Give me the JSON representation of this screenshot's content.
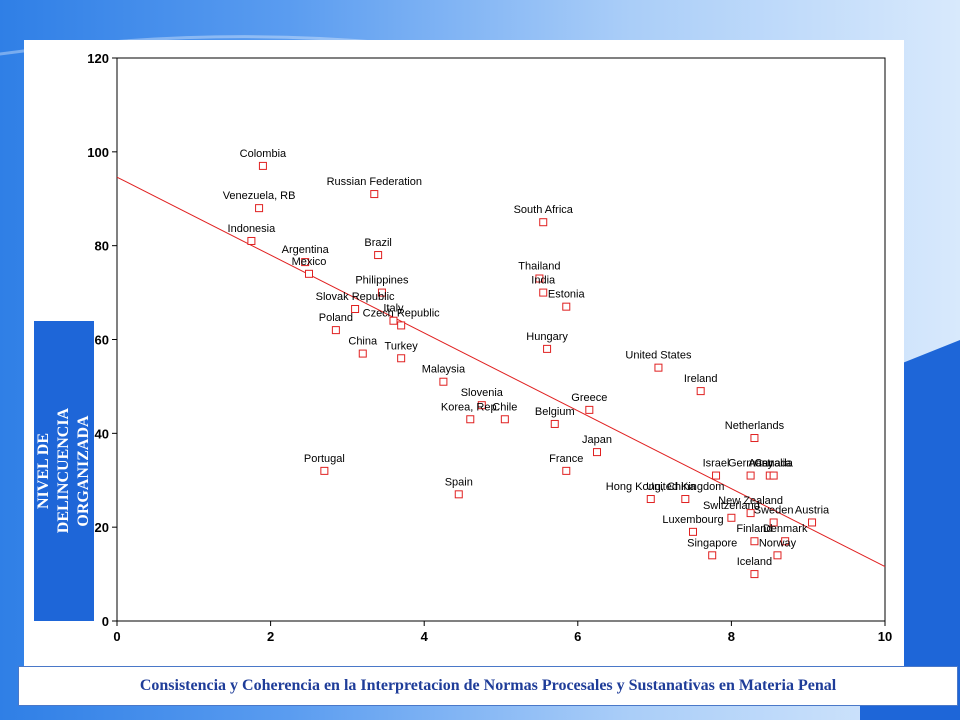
{
  "footer": {
    "text": "Consistencia y Coherencia en la Interpretacion de Normas Procesales y Sustanativas en Materia Penal"
  },
  "colors": {
    "marker": "#e02020",
    "fit_line": "#e02020",
    "label_box": "#1e66d8"
  },
  "chart_data": {
    "type": "scatter",
    "title": "",
    "xlabel": "",
    "ylabel": "NIVEL DE DELINCUENCIA ORGANIZADA",
    "xlim": [
      0,
      10
    ],
    "ylim": [
      0,
      120
    ],
    "x_ticks": [
      0,
      2,
      4,
      6,
      8,
      10
    ],
    "y_ticks": [
      0,
      20,
      40,
      60,
      80,
      100,
      120
    ],
    "y_tick_labels": [
      "0",
      "20",
      "40",
      "60",
      "80",
      "100",
      "120"
    ],
    "grid": false,
    "legend": "none",
    "marker": "hollow-square",
    "fit_line": {
      "x": [
        0,
        10
      ],
      "y": [
        94.6,
        11.6
      ]
    },
    "points": [
      {
        "label": "Colombia",
        "x": 1.9,
        "y": 97
      },
      {
        "label": "Russian Federation",
        "x": 3.35,
        "y": 91
      },
      {
        "label": "Venezuela, RB",
        "x": 1.85,
        "y": 88
      },
      {
        "label": "Indonesia",
        "x": 1.75,
        "y": 81
      },
      {
        "label": "Brazil",
        "x": 3.4,
        "y": 78
      },
      {
        "label": "Argentina",
        "x": 2.45,
        "y": 76.5
      },
      {
        "label": "Mexico",
        "x": 2.5,
        "y": 74
      },
      {
        "label": "Philippines",
        "x": 3.45,
        "y": 70
      },
      {
        "label": "Slovak Republic",
        "x": 3.1,
        "y": 66.5
      },
      {
        "label": "Italy",
        "x": 3.6,
        "y": 64
      },
      {
        "label": "Czech Republic",
        "x": 3.7,
        "y": 63
      },
      {
        "label": "Poland",
        "x": 2.85,
        "y": 62
      },
      {
        "label": "China",
        "x": 3.2,
        "y": 57
      },
      {
        "label": "Turkey",
        "x": 3.7,
        "y": 56
      },
      {
        "label": "Malaysia",
        "x": 4.25,
        "y": 51
      },
      {
        "label": "Slovenia",
        "x": 4.75,
        "y": 46
      },
      {
        "label": "Korea, Rep.",
        "x": 4.6,
        "y": 43
      },
      {
        "label": "Chile",
        "x": 5.05,
        "y": 43
      },
      {
        "label": "Portugal",
        "x": 2.7,
        "y": 32
      },
      {
        "label": "Spain",
        "x": 4.45,
        "y": 27
      },
      {
        "label": "South Africa",
        "x": 5.55,
        "y": 85
      },
      {
        "label": "Thailand",
        "x": 5.5,
        "y": 73
      },
      {
        "label": "India",
        "x": 5.55,
        "y": 70
      },
      {
        "label": "Estonia",
        "x": 5.85,
        "y": 67
      },
      {
        "label": "Hungary",
        "x": 5.6,
        "y": 58
      },
      {
        "label": "Greece",
        "x": 6.15,
        "y": 45
      },
      {
        "label": "Belgium",
        "x": 5.7,
        "y": 42
      },
      {
        "label": "Japan",
        "x": 6.25,
        "y": 36
      },
      {
        "label": "France",
        "x": 5.85,
        "y": 32
      },
      {
        "label": "United States",
        "x": 7.05,
        "y": 54
      },
      {
        "label": "Ireland",
        "x": 7.6,
        "y": 49
      },
      {
        "label": "Netherlands",
        "x": 8.3,
        "y": 39
      },
      {
        "label": "Israel",
        "x": 7.8,
        "y": 31
      },
      {
        "label": "Germany",
        "x": 8.25,
        "y": 31
      },
      {
        "label": "Australia",
        "x": 8.5,
        "y": 31
      },
      {
        "label": "Canada",
        "x": 8.55,
        "y": 31
      },
      {
        "label": "Hong Kong, China",
        "x": 6.95,
        "y": 26
      },
      {
        "label": "United Kingdom",
        "x": 7.4,
        "y": 26
      },
      {
        "label": "New Zealand",
        "x": 8.25,
        "y": 23
      },
      {
        "label": "Switzerland",
        "x": 8.0,
        "y": 22
      },
      {
        "label": "Sweden",
        "x": 8.55,
        "y": 21
      },
      {
        "label": "Austria",
        "x": 9.05,
        "y": 21
      },
      {
        "label": "Luxembourg",
        "x": 7.5,
        "y": 19
      },
      {
        "label": "Finland",
        "x": 8.3,
        "y": 17
      },
      {
        "label": "Denmark",
        "x": 8.7,
        "y": 17
      },
      {
        "label": "Singapore",
        "x": 7.75,
        "y": 14
      },
      {
        "label": "Norway",
        "x": 8.6,
        "y": 14
      },
      {
        "label": "Iceland",
        "x": 8.3,
        "y": 10
      }
    ]
  }
}
